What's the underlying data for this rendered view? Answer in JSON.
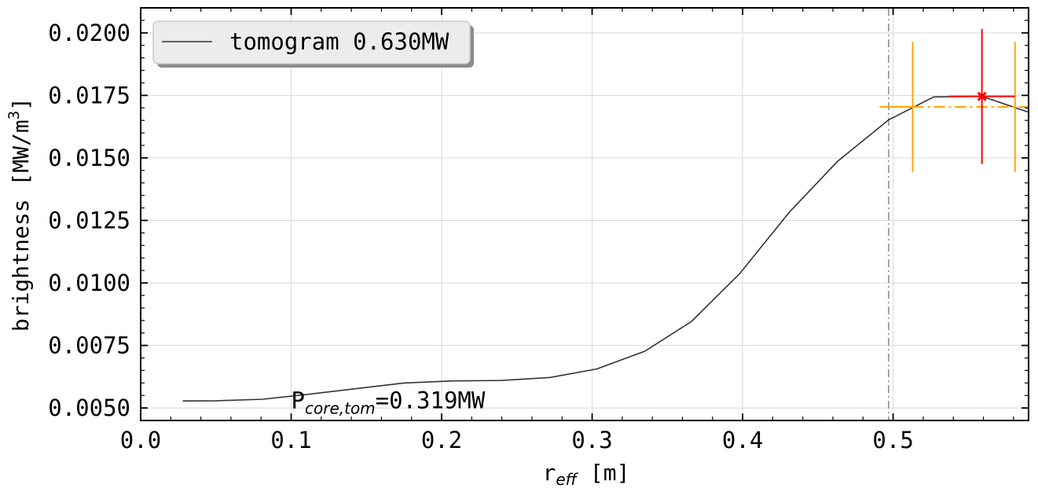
{
  "chart_data": {
    "type": "line",
    "xlabel_main": "r",
    "xlabel_sub": "eff",
    "xlabel_unit": " [m]",
    "ylabel_main": "brightness [MW/m",
    "ylabel_sup": "3",
    "ylabel_end": "]",
    "xlim": [
      0.0,
      0.59
    ],
    "ylim": [
      0.0045,
      0.021
    ],
    "xticks": [
      0.0,
      0.1,
      0.2,
      0.3,
      0.4,
      0.5
    ],
    "xtick_labels": [
      "0.0",
      "0.1",
      "0.2",
      "0.3",
      "0.4",
      "0.5"
    ],
    "yticks": [
      0.005,
      0.0075,
      0.01,
      0.0125,
      0.015,
      0.0175,
      0.02
    ],
    "ytick_labels": [
      "0.0050",
      "0.0075",
      "0.0100",
      "0.0125",
      "0.0150",
      "0.0175",
      "0.0200"
    ],
    "grid": true,
    "legend_position": "top-left",
    "series": [
      {
        "name": "tomogram 0.630MW",
        "color": "#333333",
        "x": [
          0.028,
          0.05,
          0.081,
          0.112,
          0.144,
          0.175,
          0.207,
          0.24,
          0.272,
          0.303,
          0.335,
          0.366,
          0.398,
          0.431,
          0.463,
          0.497,
          0.527,
          0.559,
          0.59
        ],
        "y": [
          0.00528,
          0.00529,
          0.00535,
          0.00555,
          0.00578,
          0.006,
          0.00608,
          0.0061,
          0.00622,
          0.00656,
          0.00727,
          0.00846,
          0.01037,
          0.01283,
          0.01486,
          0.01652,
          0.01744,
          0.01746,
          0.01683
        ]
      }
    ],
    "vline": {
      "x": 0.497,
      "color": "#888888"
    },
    "errorbars": [
      {
        "color": "#ffa500",
        "x": 0.547,
        "y": 0.01704,
        "xerr": 0.034,
        "yerr": 0.0026,
        "x_from": 0.491,
        "x_to": 0.59,
        "cap_x": [
          0.513,
          0.581
        ],
        "style": "dashdot"
      },
      {
        "color": "#ff0000",
        "x": 0.559,
        "y": 0.01746,
        "xerr": 0.022,
        "yerr": 0.0027,
        "marker": "x"
      }
    ],
    "annotation": {
      "main": "P",
      "sub": "core,tom",
      "rest": "=0.319MW",
      "x": 0.1,
      "y": 0.0053
    }
  }
}
